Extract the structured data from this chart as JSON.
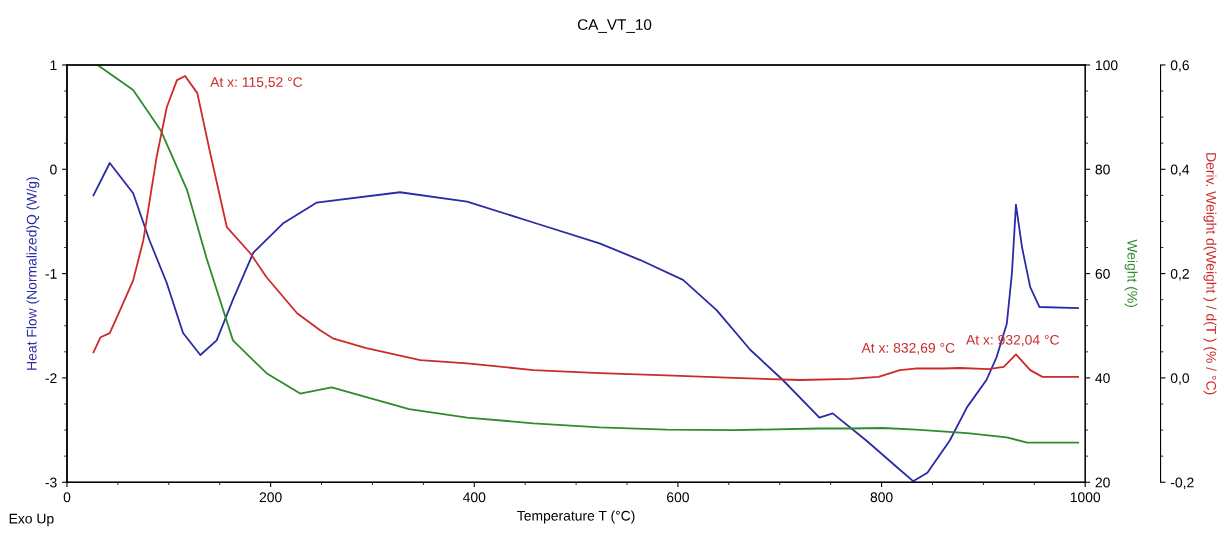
{
  "chart_data": {
    "type": "line",
    "title": "CA_VT_10",
    "xlabel": "Temperature T (°C)",
    "ylabel": "Heat Flow (Normalized)Q (W/g)",
    "y2label": "Weight (%)",
    "y3label": "Deriv. Weight d(Weight ) / d(T ) (% / °C)",
    "xlim": [
      0,
      1000
    ],
    "xticks": [
      0,
      200,
      400,
      600,
      800,
      1000
    ],
    "ylim": [
      -3,
      1
    ],
    "yticks": [
      -3,
      -2,
      -1,
      0,
      1
    ],
    "y2lim": [
      20,
      100
    ],
    "y2ticks": [
      20,
      40,
      60,
      80,
      100
    ],
    "y3lim": [
      -0.2,
      0.6
    ],
    "y3ticks": [
      {
        "value": -0.2,
        "label": "-0,2"
      },
      {
        "value": 0,
        "label": "0,0"
      },
      {
        "value": 0.2,
        "label": "0,2"
      },
      {
        "value": 0.4,
        "label": "0,4"
      },
      {
        "value": 0.6,
        "label": "0,6"
      }
    ],
    "grid": false,
    "marker": "none",
    "line_style": "solid",
    "series": [
      {
        "color": "#2b2ba6",
        "axis": "y",
        "x": [
          26,
          42,
          65,
          81,
          98,
          114,
          131,
          147,
          163,
          183,
          212,
          245,
          327,
          393,
          458,
          523,
          563,
          605,
          638,
          671,
          703,
          739,
          752,
          785,
          818,
          831,
          845,
          867,
          884,
          903,
          913,
          923,
          928,
          932,
          938,
          946,
          955,
          993
        ],
        "values": [
          -0.25,
          0.06,
          -0.23,
          -0.68,
          -1.09,
          -1.57,
          -1.78,
          -1.64,
          -1.25,
          -0.8,
          -0.52,
          -0.32,
          -0.22,
          -0.31,
          -0.51,
          -0.71,
          -0.87,
          -1.06,
          -1.35,
          -1.73,
          -2.02,
          -2.38,
          -2.34,
          -2.6,
          -2.88,
          -2.99,
          -2.91,
          -2.6,
          -2.28,
          -2.02,
          -1.8,
          -1.48,
          -1.0,
          -0.34,
          -0.75,
          -1.13,
          -1.32,
          -1.33
        ]
      },
      {
        "color": "#2e8b2e",
        "axis": "y2",
        "x": [
          27,
          30,
          65,
          92,
          118,
          137,
          163,
          196,
          229,
          260,
          336,
          393,
          458,
          523,
          589,
          655,
          739,
          769,
          801,
          834,
          884,
          923,
          943,
          993
        ],
        "values": [
          100,
          100,
          95.2,
          87.5,
          76,
          63,
          47.2,
          40.9,
          37,
          38.2,
          34,
          32.4,
          31.3,
          30.5,
          30.1,
          30.0,
          30.3,
          30.3,
          30.4,
          30.1,
          29.4,
          28.6,
          27.6,
          27.6
        ]
      },
      {
        "color": "#cc2b2b",
        "axis": "y3",
        "x": [
          26,
          33,
          42,
          49,
          65,
          75,
          88,
          98,
          108,
          116,
          128,
          140,
          157,
          180,
          196,
          226,
          249,
          261,
          294,
          347,
          393,
          458,
          523,
          589,
          655,
          720,
          769,
          797,
          818,
          833,
          861,
          877,
          905,
          920,
          932,
          946,
          958,
          993
        ],
        "values": [
          0.049,
          0.078,
          0.086,
          0.116,
          0.187,
          0.264,
          0.423,
          0.519,
          0.571,
          0.579,
          0.546,
          0.437,
          0.289,
          0.239,
          0.193,
          0.124,
          0.091,
          0.076,
          0.057,
          0.034,
          0.028,
          0.015,
          0.009,
          0.005,
          0.0,
          -0.004,
          -0.002,
          0.002,
          0.015,
          0.018,
          0.018,
          0.019,
          0.017,
          0.021,
          0.045,
          0.015,
          0.002,
          0.002
        ]
      }
    ],
    "annotations": [
      "At x: 115,52 °C",
      "At x: 832,69 °C",
      "At x: 932,04 °C",
      "Exo Up"
    ]
  }
}
